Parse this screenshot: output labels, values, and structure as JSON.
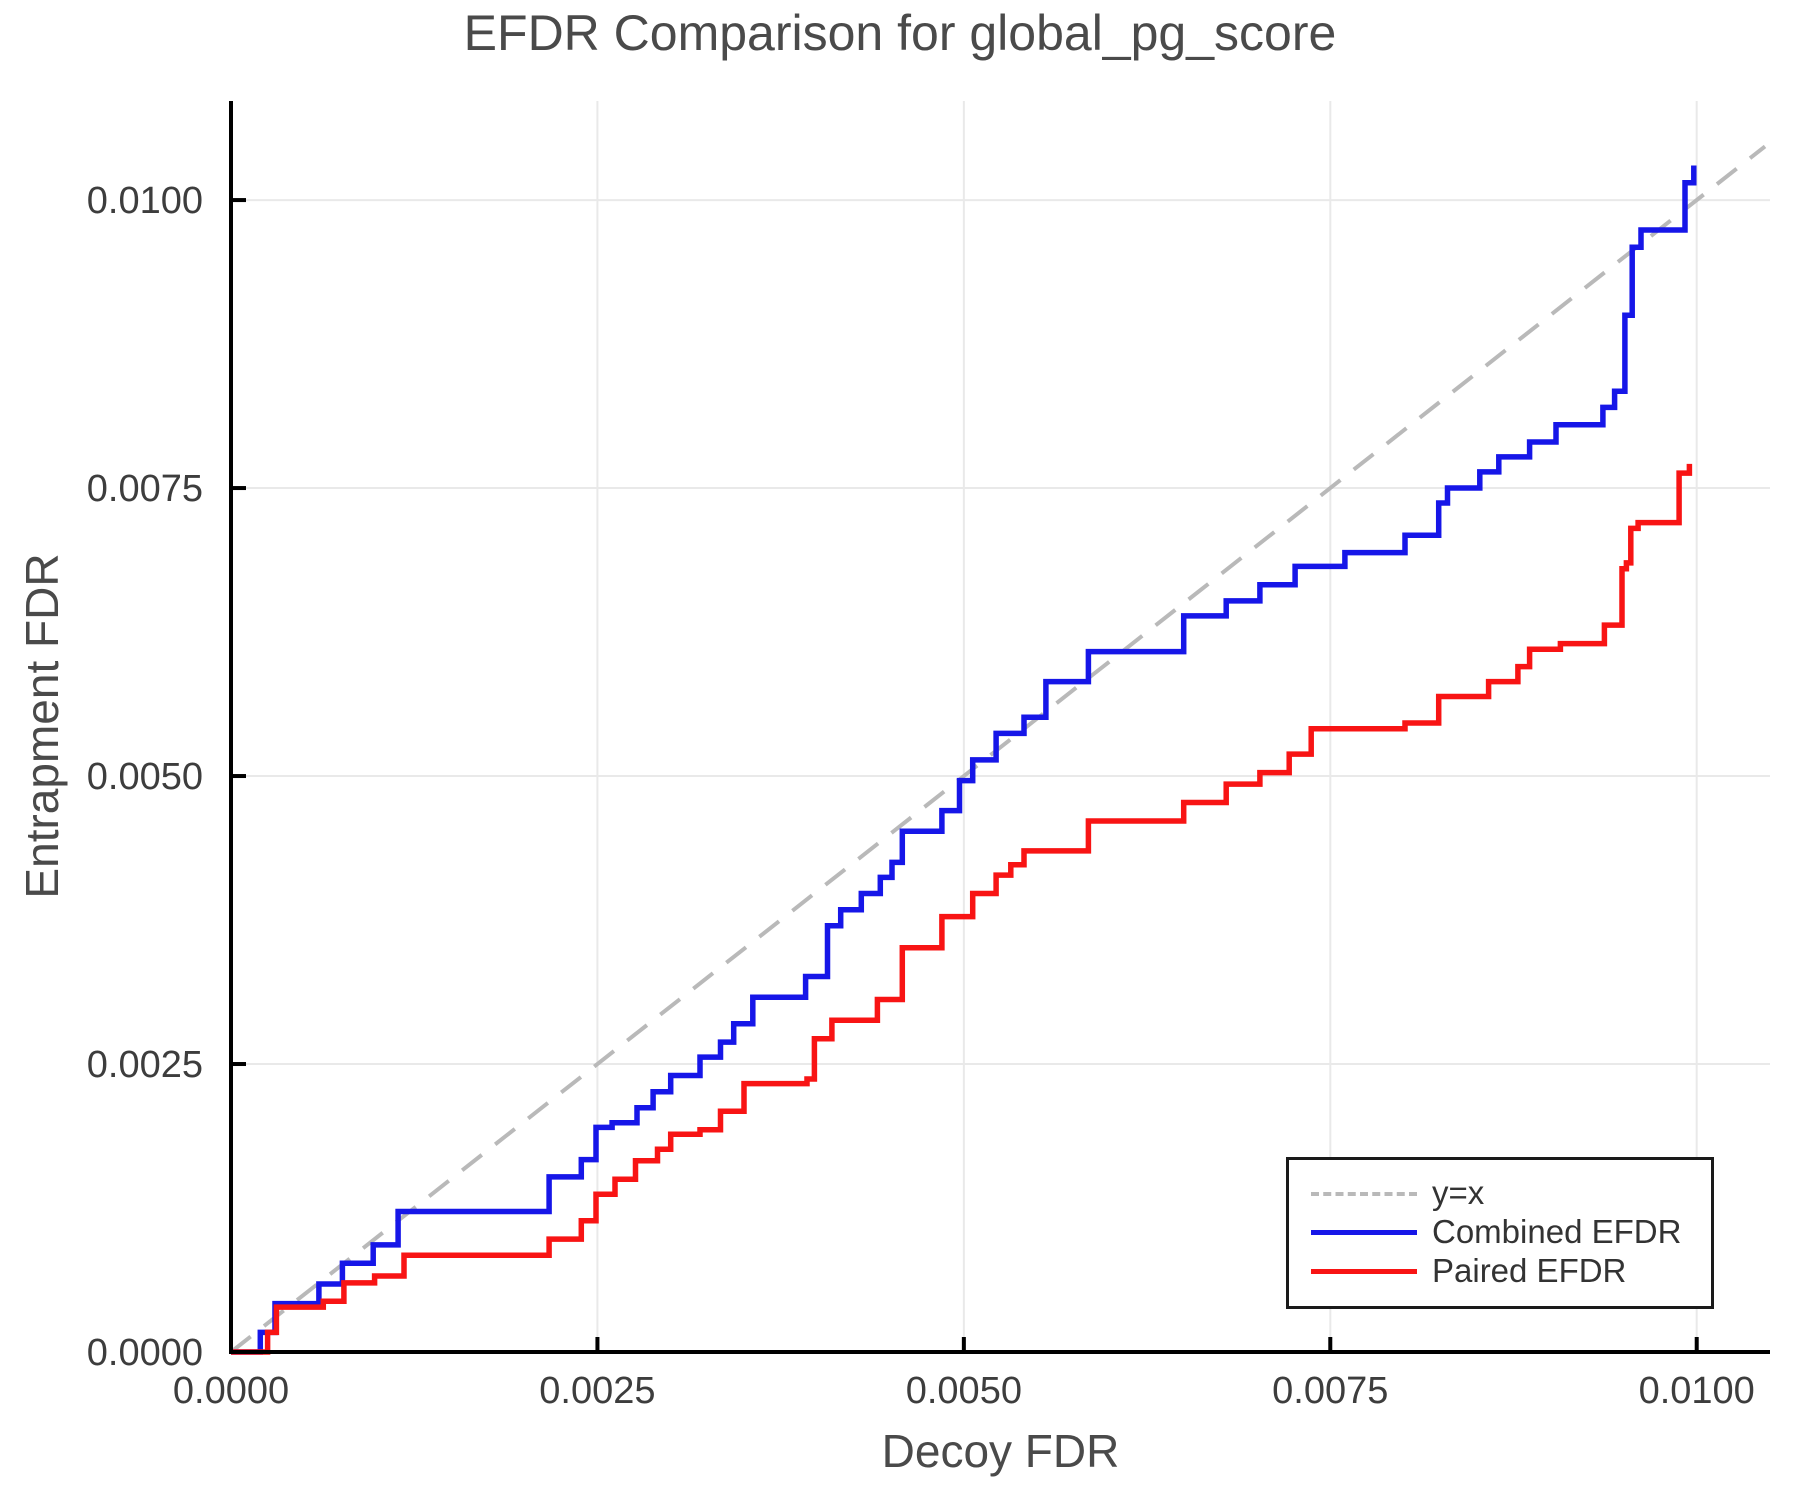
{
  "chart": {
    "title": "EFDR Comparison for global_pg_score",
    "xlabel": "Decoy FDR",
    "ylabel": "Entrapment FDR"
  },
  "colors": {
    "combined_efdr": "#1616e8",
    "paired_efdr": "#f81414",
    "reference_line": "#b9b9b9",
    "gridline": "#e9e9e9",
    "spine": "#000000",
    "tick_label": "#3d3d3d",
    "title_text": "#4a4a4a"
  },
  "legend": {
    "items": [
      {
        "label": "y=x",
        "style": "dashed",
        "color": "#b9b9b9"
      },
      {
        "label": "Combined EFDR",
        "style": "solid",
        "color": "#1616e8"
      },
      {
        "label": "Paired EFDR",
        "style": "solid",
        "color": "#f81414"
      }
    ]
  },
  "chart_data": {
    "type": "line",
    "title": "EFDR Comparison for global_pg_score",
    "xlabel": "Decoy FDR",
    "ylabel": "Entrapment FDR",
    "xlim": [
      0,
      0.0105
    ],
    "ylim": [
      0,
      0.01086
    ],
    "xticks": [
      0,
      0.0025,
      0.005,
      0.0075,
      0.01
    ],
    "yticks": [
      0,
      0.0025,
      0.005,
      0.0075,
      0.01
    ],
    "xtick_labels": [
      "0.0000",
      "0.0025",
      "0.0050",
      "0.0075",
      "0.0100"
    ],
    "ytick_labels": [
      "0.0000",
      "0.0025",
      "0.0050",
      "0.0075",
      "0.0100"
    ],
    "grid": true,
    "legend_position": "lower right",
    "reference_line": {
      "name": "y=x",
      "from": [
        0,
        0
      ],
      "to": [
        0.010466,
        0.010466
      ],
      "style": "dashed",
      "color": "#b9b9b9"
    },
    "series": [
      {
        "name": "Combined EFDR",
        "color": "#1616e8",
        "step": "post",
        "points": [
          [
            0.0,
            0.0
          ],
          [
            0.0002,
            0.00017
          ],
          [
            0.0003,
            0.00042
          ],
          [
            0.0006,
            0.00059
          ],
          [
            0.00076,
            0.00077
          ],
          [
            0.00097,
            0.00093
          ],
          [
            0.00114,
            0.00122
          ],
          [
            0.00217,
            0.00152
          ],
          [
            0.00239,
            0.00167
          ],
          [
            0.00249,
            0.00195
          ],
          [
            0.0026,
            0.00199
          ],
          [
            0.00277,
            0.00212
          ],
          [
            0.00288,
            0.00226
          ],
          [
            0.003,
            0.0024
          ],
          [
            0.0032,
            0.00256
          ],
          [
            0.00334,
            0.00269
          ],
          [
            0.00343,
            0.00285
          ],
          [
            0.00356,
            0.00308
          ],
          [
            0.00392,
            0.00326
          ],
          [
            0.00407,
            0.0037
          ],
          [
            0.00416,
            0.00384
          ],
          [
            0.0043,
            0.00398
          ],
          [
            0.00443,
            0.00412
          ],
          [
            0.00451,
            0.00425
          ],
          [
            0.00458,
            0.00452
          ],
          [
            0.00485,
            0.0047
          ],
          [
            0.00497,
            0.00496
          ],
          [
            0.00506,
            0.00514
          ],
          [
            0.00522,
            0.00537
          ],
          [
            0.00541,
            0.00551
          ],
          [
            0.00556,
            0.00582
          ],
          [
            0.00585,
            0.00608
          ],
          [
            0.0065,
            0.00639
          ],
          [
            0.00679,
            0.00652
          ],
          [
            0.00702,
            0.00666
          ],
          [
            0.00726,
            0.00682
          ],
          [
            0.0076,
            0.00694
          ],
          [
            0.00801,
            0.00709
          ],
          [
            0.00824,
            0.00737
          ],
          [
            0.0083,
            0.0075
          ],
          [
            0.00852,
            0.00764
          ],
          [
            0.00865,
            0.00777
          ],
          [
            0.00886,
            0.0079
          ],
          [
            0.00904,
            0.00805
          ],
          [
            0.00936,
            0.0082
          ],
          [
            0.00944,
            0.00834
          ],
          [
            0.00951,
            0.009
          ],
          [
            0.00956,
            0.00959
          ],
          [
            0.00962,
            0.00974
          ],
          [
            0.00992,
            0.01015
          ],
          [
            0.00998,
            0.0103
          ]
        ]
      },
      {
        "name": "Paired EFDR",
        "color": "#f81414",
        "step": "post",
        "points": [
          [
            0.0,
            0.0
          ],
          [
            0.00025,
            0.00017
          ],
          [
            0.00031,
            0.00039
          ],
          [
            0.00063,
            0.00044
          ],
          [
            0.00077,
            0.0006
          ],
          [
            0.00098,
            0.00066
          ],
          [
            0.00118,
            0.00084
          ],
          [
            0.00217,
            0.00098
          ],
          [
            0.00239,
            0.00114
          ],
          [
            0.00249,
            0.00137
          ],
          [
            0.00262,
            0.0015
          ],
          [
            0.00276,
            0.00166
          ],
          [
            0.00291,
            0.00176
          ],
          [
            0.003,
            0.00189
          ],
          [
            0.0032,
            0.00193
          ],
          [
            0.00334,
            0.00209
          ],
          [
            0.0035,
            0.00233
          ],
          [
            0.00393,
            0.00237
          ],
          [
            0.00398,
            0.00272
          ],
          [
            0.0041,
            0.00288
          ],
          [
            0.00441,
            0.00306
          ],
          [
            0.00458,
            0.00351
          ],
          [
            0.00485,
            0.00378
          ],
          [
            0.00506,
            0.00398
          ],
          [
            0.00522,
            0.00414
          ],
          [
            0.00532,
            0.00423
          ],
          [
            0.00541,
            0.00435
          ],
          [
            0.00585,
            0.00461
          ],
          [
            0.0065,
            0.00477
          ],
          [
            0.00679,
            0.00493
          ],
          [
            0.00702,
            0.00503
          ],
          [
            0.00722,
            0.00519
          ],
          [
            0.00737,
            0.00541
          ],
          [
            0.00801,
            0.00546
          ],
          [
            0.00824,
            0.00569
          ],
          [
            0.00858,
            0.00582
          ],
          [
            0.00878,
            0.00595
          ],
          [
            0.00886,
            0.0061
          ],
          [
            0.00907,
            0.00615
          ],
          [
            0.00937,
            0.00631
          ],
          [
            0.00949,
            0.0068
          ],
          [
            0.00952,
            0.00685
          ],
          [
            0.00955,
            0.00715
          ],
          [
            0.0096,
            0.0072
          ],
          [
            0.00988,
            0.00763
          ],
          [
            0.00995,
            0.00771
          ]
        ]
      }
    ]
  }
}
